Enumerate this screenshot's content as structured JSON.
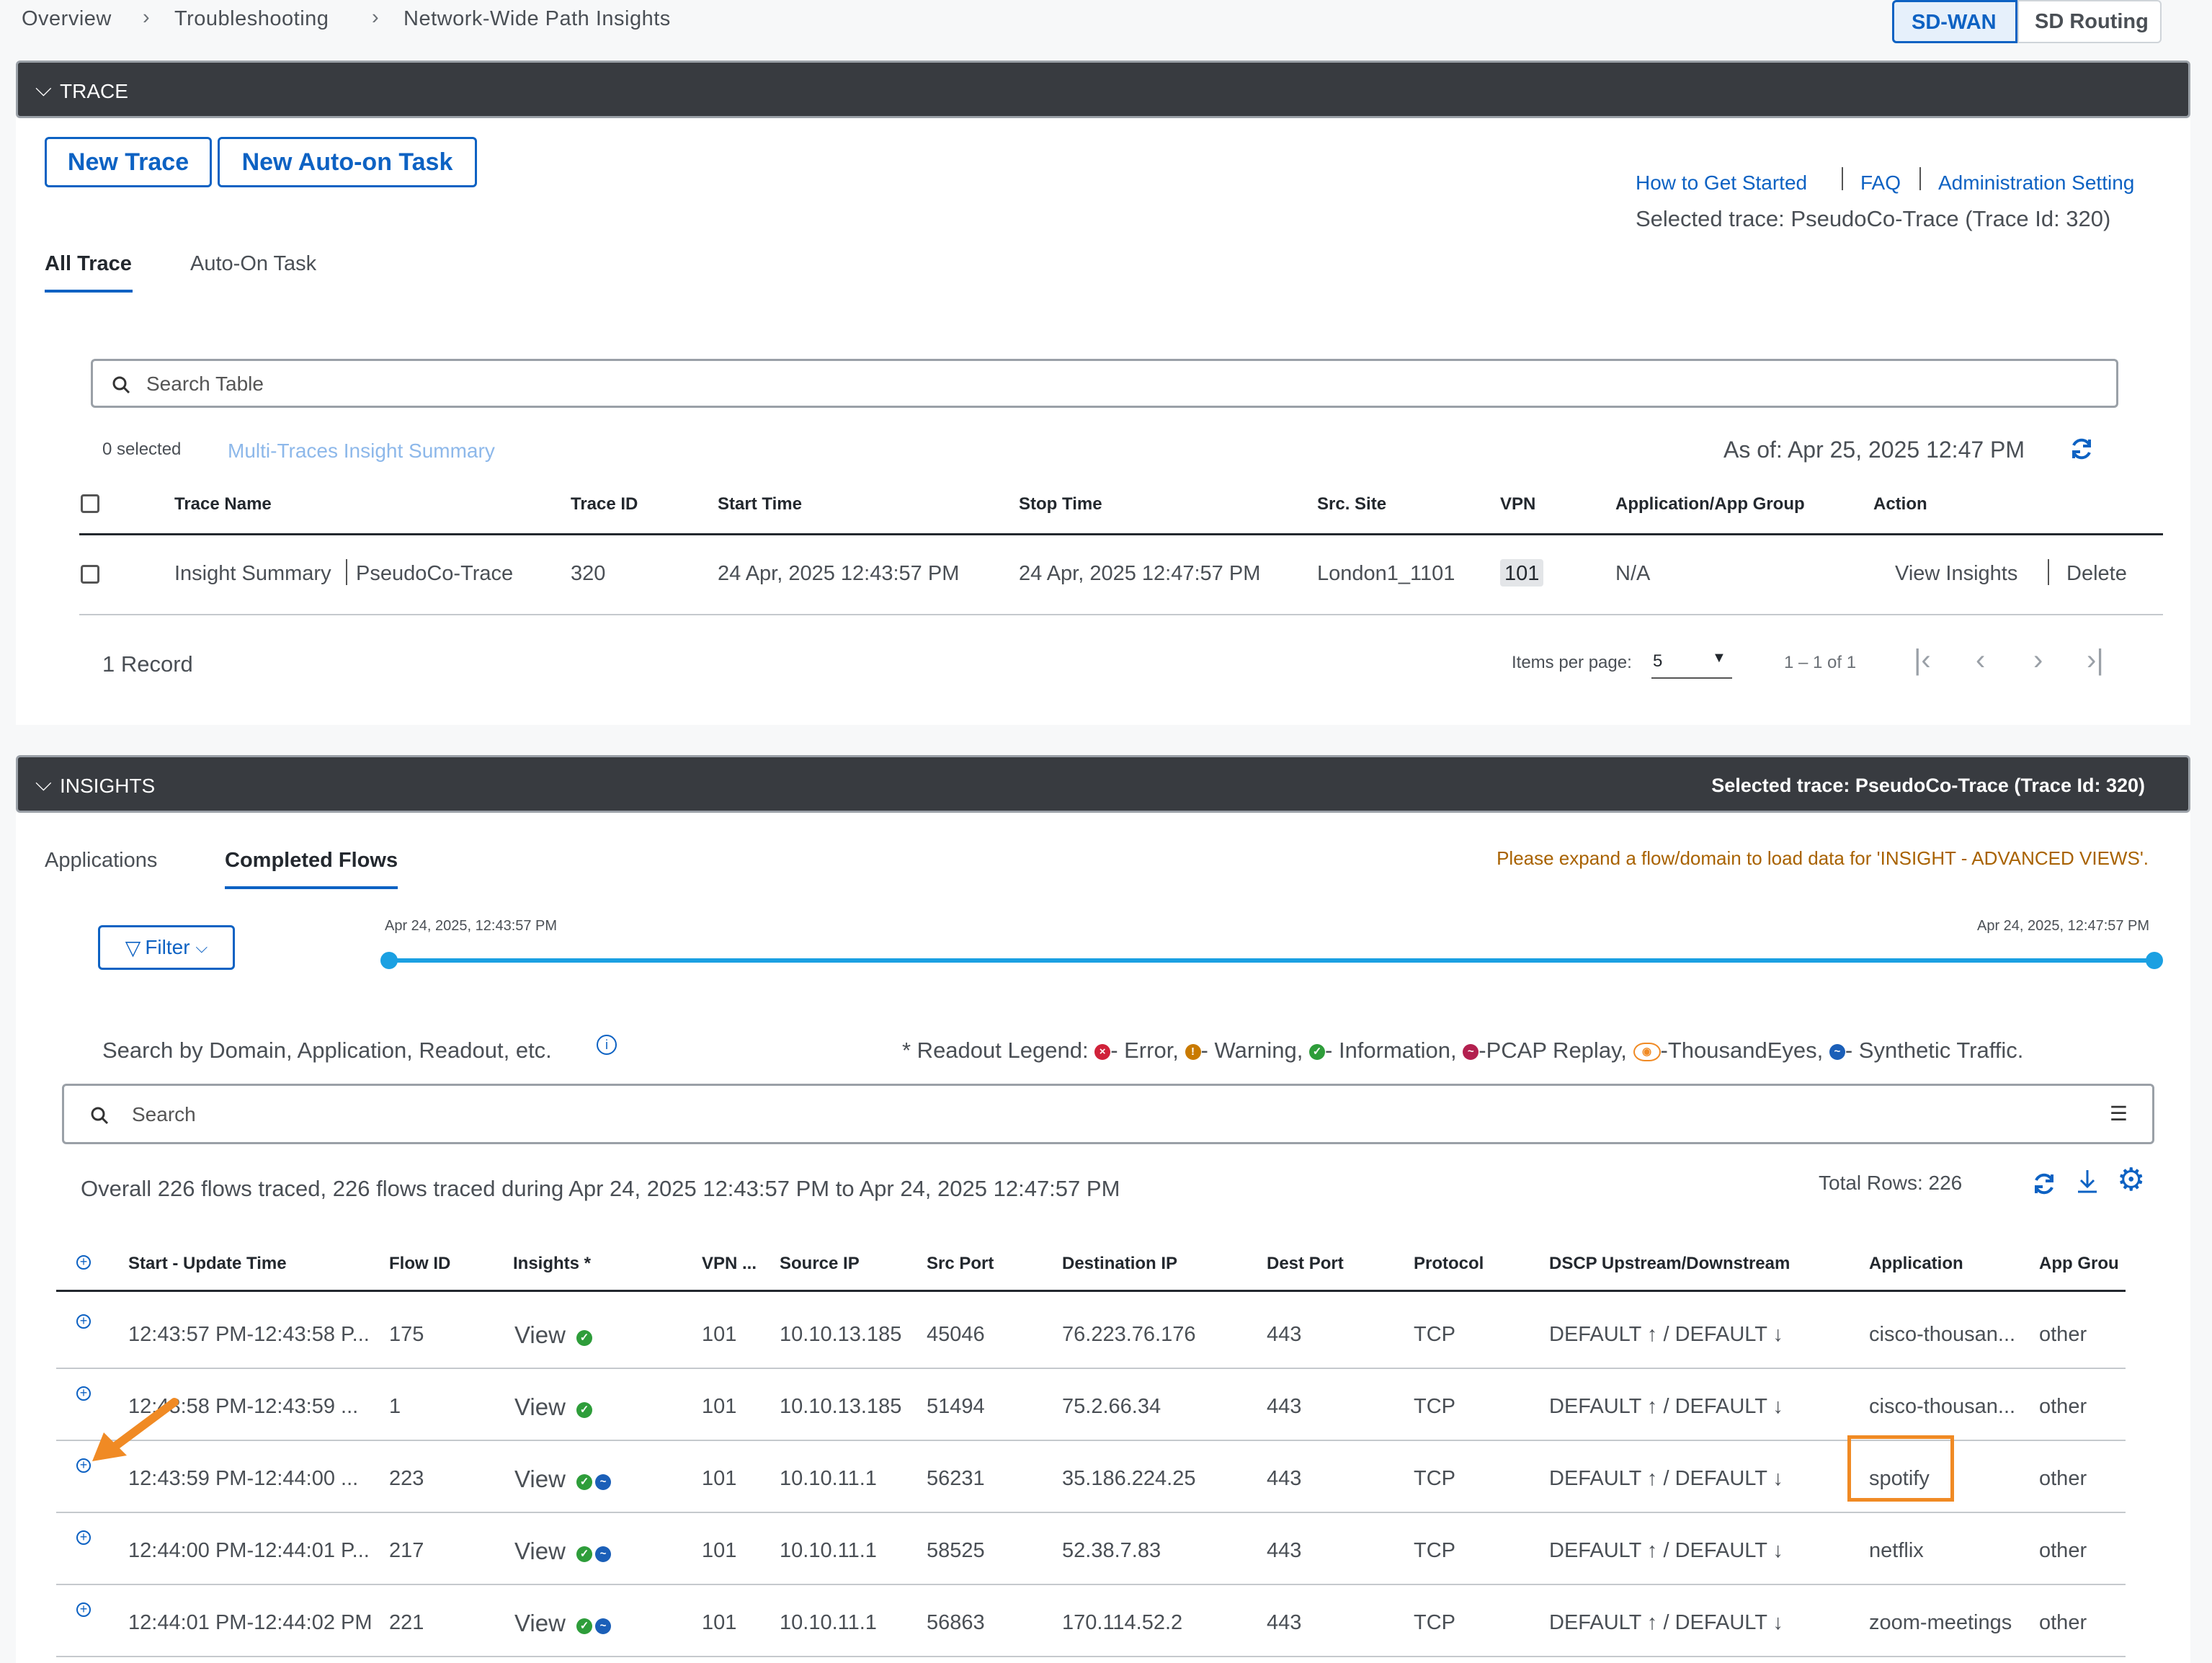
{
  "breadcrumb": [
    "Overview",
    "Troubleshooting",
    "Network-Wide Path Insights"
  ],
  "mode_toggle": {
    "active": "SD-WAN",
    "inactive": "SD Routing"
  },
  "trace_section": {
    "title": "TRACE",
    "new_trace": "New Trace",
    "new_auto_task": "New Auto-on Task",
    "links": [
      "How to Get Started",
      "FAQ",
      "Administration Setting"
    ],
    "selected_trace": "Selected trace: PseudoCo-Trace (Trace Id: 320)",
    "tabs": [
      "All Trace",
      "Auto-On Task"
    ],
    "search_placeholder": "Search Table",
    "selected_count": "0 selected",
    "multi_summary": "Multi-Traces Insight Summary",
    "as_of": "As of: Apr 25, 2025 12:47 PM",
    "columns": [
      "Trace Name",
      "Trace ID",
      "Start Time",
      "Stop Time",
      "Src. Site",
      "VPN",
      "Application/App Group",
      "Action"
    ],
    "row": {
      "insight_summary": "Insight Summary",
      "trace_name": "PseudoCo-Trace",
      "trace_id": "320",
      "start": "24 Apr, 2025 12:43:57 PM",
      "stop": "24 Apr, 2025 12:47:57 PM",
      "site": "London1_1101",
      "vpn": "101",
      "app": "N/A",
      "view_insights": "View Insights",
      "delete": "Delete"
    },
    "record_count": "1 Record",
    "items_per_page_label": "Items per page:",
    "items_per_page": "5",
    "range": "1 – 1 of 1"
  },
  "insights_section": {
    "title": "INSIGHTS",
    "selected_trace": "Selected trace: PseudoCo-Trace (Trace Id: 320)",
    "tabs": [
      "Applications",
      "Completed Flows"
    ],
    "expand_hint": "Please expand a flow/domain to load data for 'INSIGHT - ADVANCED VIEWS'.",
    "filter_label": "Filter",
    "timeline_start": "Apr 24, 2025, 12:43:57 PM",
    "timeline_end": "Apr 24, 2025, 12:47:57 PM",
    "search_hint": "Search by Domain, Application, Readout, etc.",
    "legend_prefix": "* Readout Legend:",
    "legend": [
      "- Error,",
      "- Warning,",
      "- Information,",
      "-PCAP Replay,",
      "-ThousandEyes,",
      "- Synthetic Traffic."
    ],
    "search_placeholder": "Search",
    "summary": "Overall 226 flows traced, 226 flows traced during Apr 24, 2025 12:43:57 PM to Apr 24, 2025 12:47:57 PM",
    "total_rows": "Total Rows: 226",
    "columns": [
      "Start - Update Time",
      "Flow ID",
      "Insights *",
      "VPN ...",
      "Source IP",
      "Src Port",
      "Destination IP",
      "Dest Port",
      "Protocol",
      "DSCP Upstream/Downstream",
      "Application",
      "App Grou"
    ],
    "rows": [
      {
        "time": "12:43:57 PM-12:43:58 P...",
        "flow": "175",
        "view": "View",
        "vpn": "101",
        "src": "10.10.13.185",
        "sport": "45046",
        "dst": "76.223.76.176",
        "dport": "443",
        "proto": "TCP",
        "dscp": "DEFAULT ↑ / DEFAULT ↓",
        "app": "cisco-thousan...",
        "group": "other"
      },
      {
        "time": "12:43:58 PM-12:43:59 ...",
        "flow": "1",
        "view": "View",
        "vpn": "101",
        "src": "10.10.13.185",
        "sport": "51494",
        "dst": "75.2.66.34",
        "dport": "443",
        "proto": "TCP",
        "dscp": "DEFAULT ↑ / DEFAULT ↓",
        "app": "cisco-thousan...",
        "group": "other"
      },
      {
        "time": "12:43:59 PM-12:44:00 ...",
        "flow": "223",
        "view": "View",
        "vpn": "101",
        "src": "10.10.11.1",
        "sport": "56231",
        "dst": "35.186.224.25",
        "dport": "443",
        "proto": "TCP",
        "dscp": "DEFAULT ↑ / DEFAULT ↓",
        "app": "spotify",
        "group": "other"
      },
      {
        "time": "12:44:00 PM-12:44:01 P...",
        "flow": "217",
        "view": "View",
        "vpn": "101",
        "src": "10.10.11.1",
        "sport": "58525",
        "dst": "52.38.7.83",
        "dport": "443",
        "proto": "TCP",
        "dscp": "DEFAULT ↑ / DEFAULT ↓",
        "app": "netflix",
        "group": "other"
      },
      {
        "time": "12:44:01 PM-12:44:02 PM",
        "flow": "221",
        "view": "View",
        "vpn": "101",
        "src": "10.10.11.1",
        "sport": "56863",
        "dst": "170.114.52.2",
        "dport": "443",
        "proto": "TCP",
        "dscp": "DEFAULT ↑ / DEFAULT ↓",
        "app": "zoom-meetings",
        "group": "other"
      }
    ]
  },
  "colors": {
    "accent": "#0d62c3",
    "dark_bar": "#383b40",
    "highlight": "#f08a24",
    "info_green": "#2e9d3a",
    "error_red": "#d0223a",
    "warning": "#c97a00"
  }
}
